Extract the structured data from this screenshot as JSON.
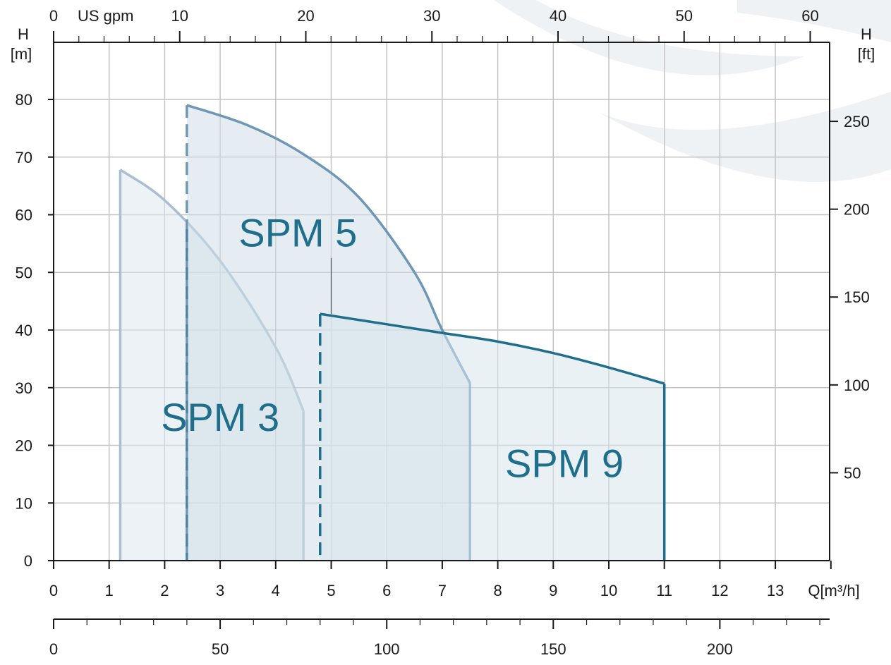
{
  "chart_data": {
    "type": "area",
    "title": "",
    "xlabel": "Q[m³/h]",
    "ylabel": "H",
    "y_unit": "[m]",
    "y2label": "H",
    "y2_unit": "[ft]",
    "top_axis_label": "US gpm",
    "xlim": [
      0,
      14
    ],
    "ylim": [
      0,
      90
    ],
    "grid": true,
    "x_ticks": [
      "0",
      "1",
      "2",
      "3",
      "4",
      "5",
      "6",
      "7",
      "8",
      "9",
      "10",
      "11",
      "12",
      "13"
    ],
    "y_ticks": [
      "0",
      "10",
      "20",
      "30",
      "40",
      "50",
      "60",
      "70",
      "80"
    ],
    "y2_ticks": [
      "50",
      "100",
      "150",
      "200",
      "250"
    ],
    "top_ticks": [
      "0",
      "10",
      "20",
      "30",
      "40",
      "50",
      "60"
    ],
    "bottom2_ticks": [
      "0",
      "50",
      "100",
      "150",
      "200"
    ],
    "series": [
      {
        "name": "SPM 3",
        "color": "#a9bfd0",
        "fill": "#dde8ef",
        "min_q": 1.2,
        "extension_q": 2.4,
        "points": [
          [
            1.2,
            67.8
          ],
          [
            2.0,
            62.5
          ],
          [
            3.0,
            52.0
          ],
          [
            4.0,
            37.0
          ],
          [
            4.5,
            26.0
          ]
        ]
      },
      {
        "name": "SPM 5",
        "color": "#6e97b5",
        "fill": "#cfdfe8",
        "min_q": 2.4,
        "extension_q": 2.4,
        "label_marker_q": 5.0,
        "points": [
          [
            2.4,
            79.0
          ],
          [
            3.5,
            75.5
          ],
          [
            4.5,
            70.5
          ],
          [
            5.5,
            63.0
          ],
          [
            6.5,
            50.0
          ],
          [
            7.0,
            40.0
          ],
          [
            7.5,
            30.8
          ]
        ]
      },
      {
        "name": "SPM 9",
        "color": "#1f6e8c",
        "fill": "#d7e6ed",
        "min_q": 4.8,
        "extension_q": 4.8,
        "points": [
          [
            4.8,
            42.8
          ],
          [
            6.0,
            41.0
          ],
          [
            7.0,
            39.5
          ],
          [
            8.0,
            38.0
          ],
          [
            9.0,
            36.0
          ],
          [
            10.0,
            33.5
          ],
          [
            11.0,
            30.7
          ]
        ]
      }
    ]
  },
  "colors": {
    "background_arc": "#eef2f5",
    "label_text": "#1f6e8c",
    "axis": "#1a1a1a",
    "grid": "#c4c4c4"
  }
}
